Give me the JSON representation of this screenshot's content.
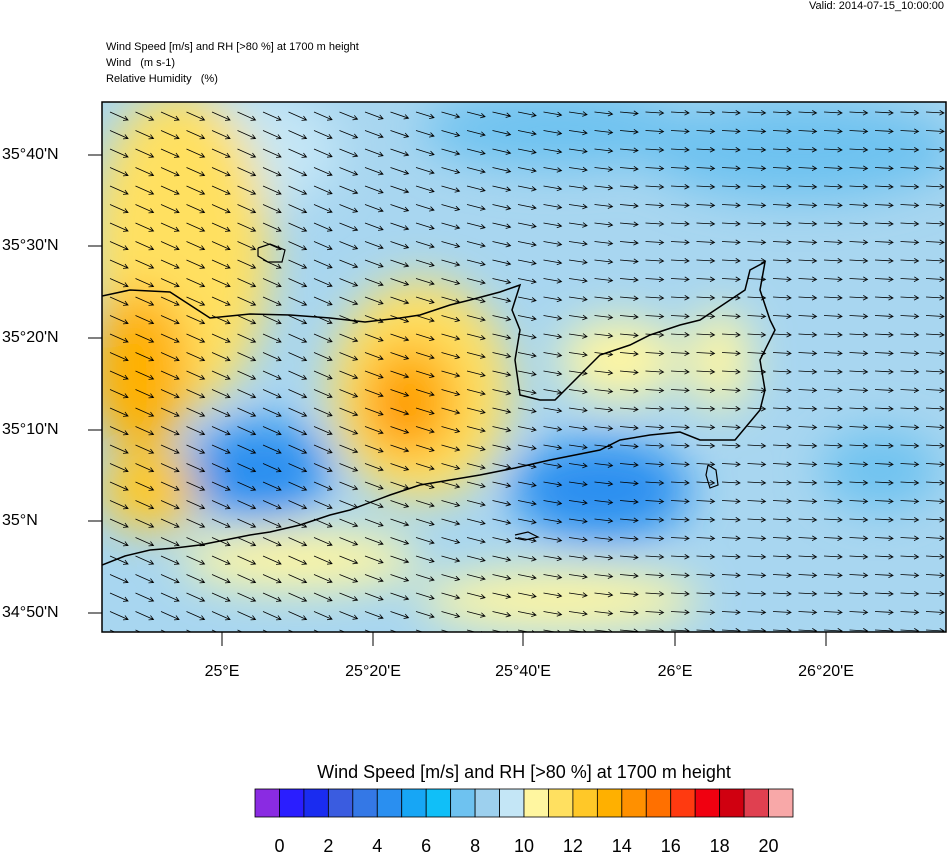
{
  "header": {
    "valid": "Valid: 2014-07-15_10:00:00",
    "title": "Wind Speed [m/s] and RH [>80 %] at 1700 m height",
    "line2": "Wind   (m s-1)",
    "line3": "Relative Humidity   (%)"
  },
  "map": {
    "lat_labels": [
      "35°40'N",
      "35°30'N",
      "35°20'N",
      "35°10'N",
      "35°N",
      "34°50'N"
    ],
    "lon_labels": [
      "25°E",
      "25°20'E",
      "25°40'E",
      "26°E",
      "26°20'E"
    ]
  },
  "colorbar": {
    "title": "Wind Speed [m/s] and RH [>80 %] at 1700 m height",
    "colors": [
      "#8a2be2",
      "#2a1eff",
      "#1a2cf0",
      "#3a5ce0",
      "#3478e6",
      "#2a8ff0",
      "#17a6f5",
      "#10bff8",
      "#6ec2f0",
      "#9dd0ee",
      "#c4e6f6",
      "#fff6a0",
      "#ffe060",
      "#ffc828",
      "#ffb000",
      "#ff9000",
      "#ff7000",
      "#ff3a10",
      "#f00010",
      "#d00010",
      "#e04050",
      "#f8a8a8"
    ],
    "ticks": [
      0,
      2,
      4,
      6,
      8,
      10,
      12,
      14,
      16,
      18,
      20
    ]
  }
}
